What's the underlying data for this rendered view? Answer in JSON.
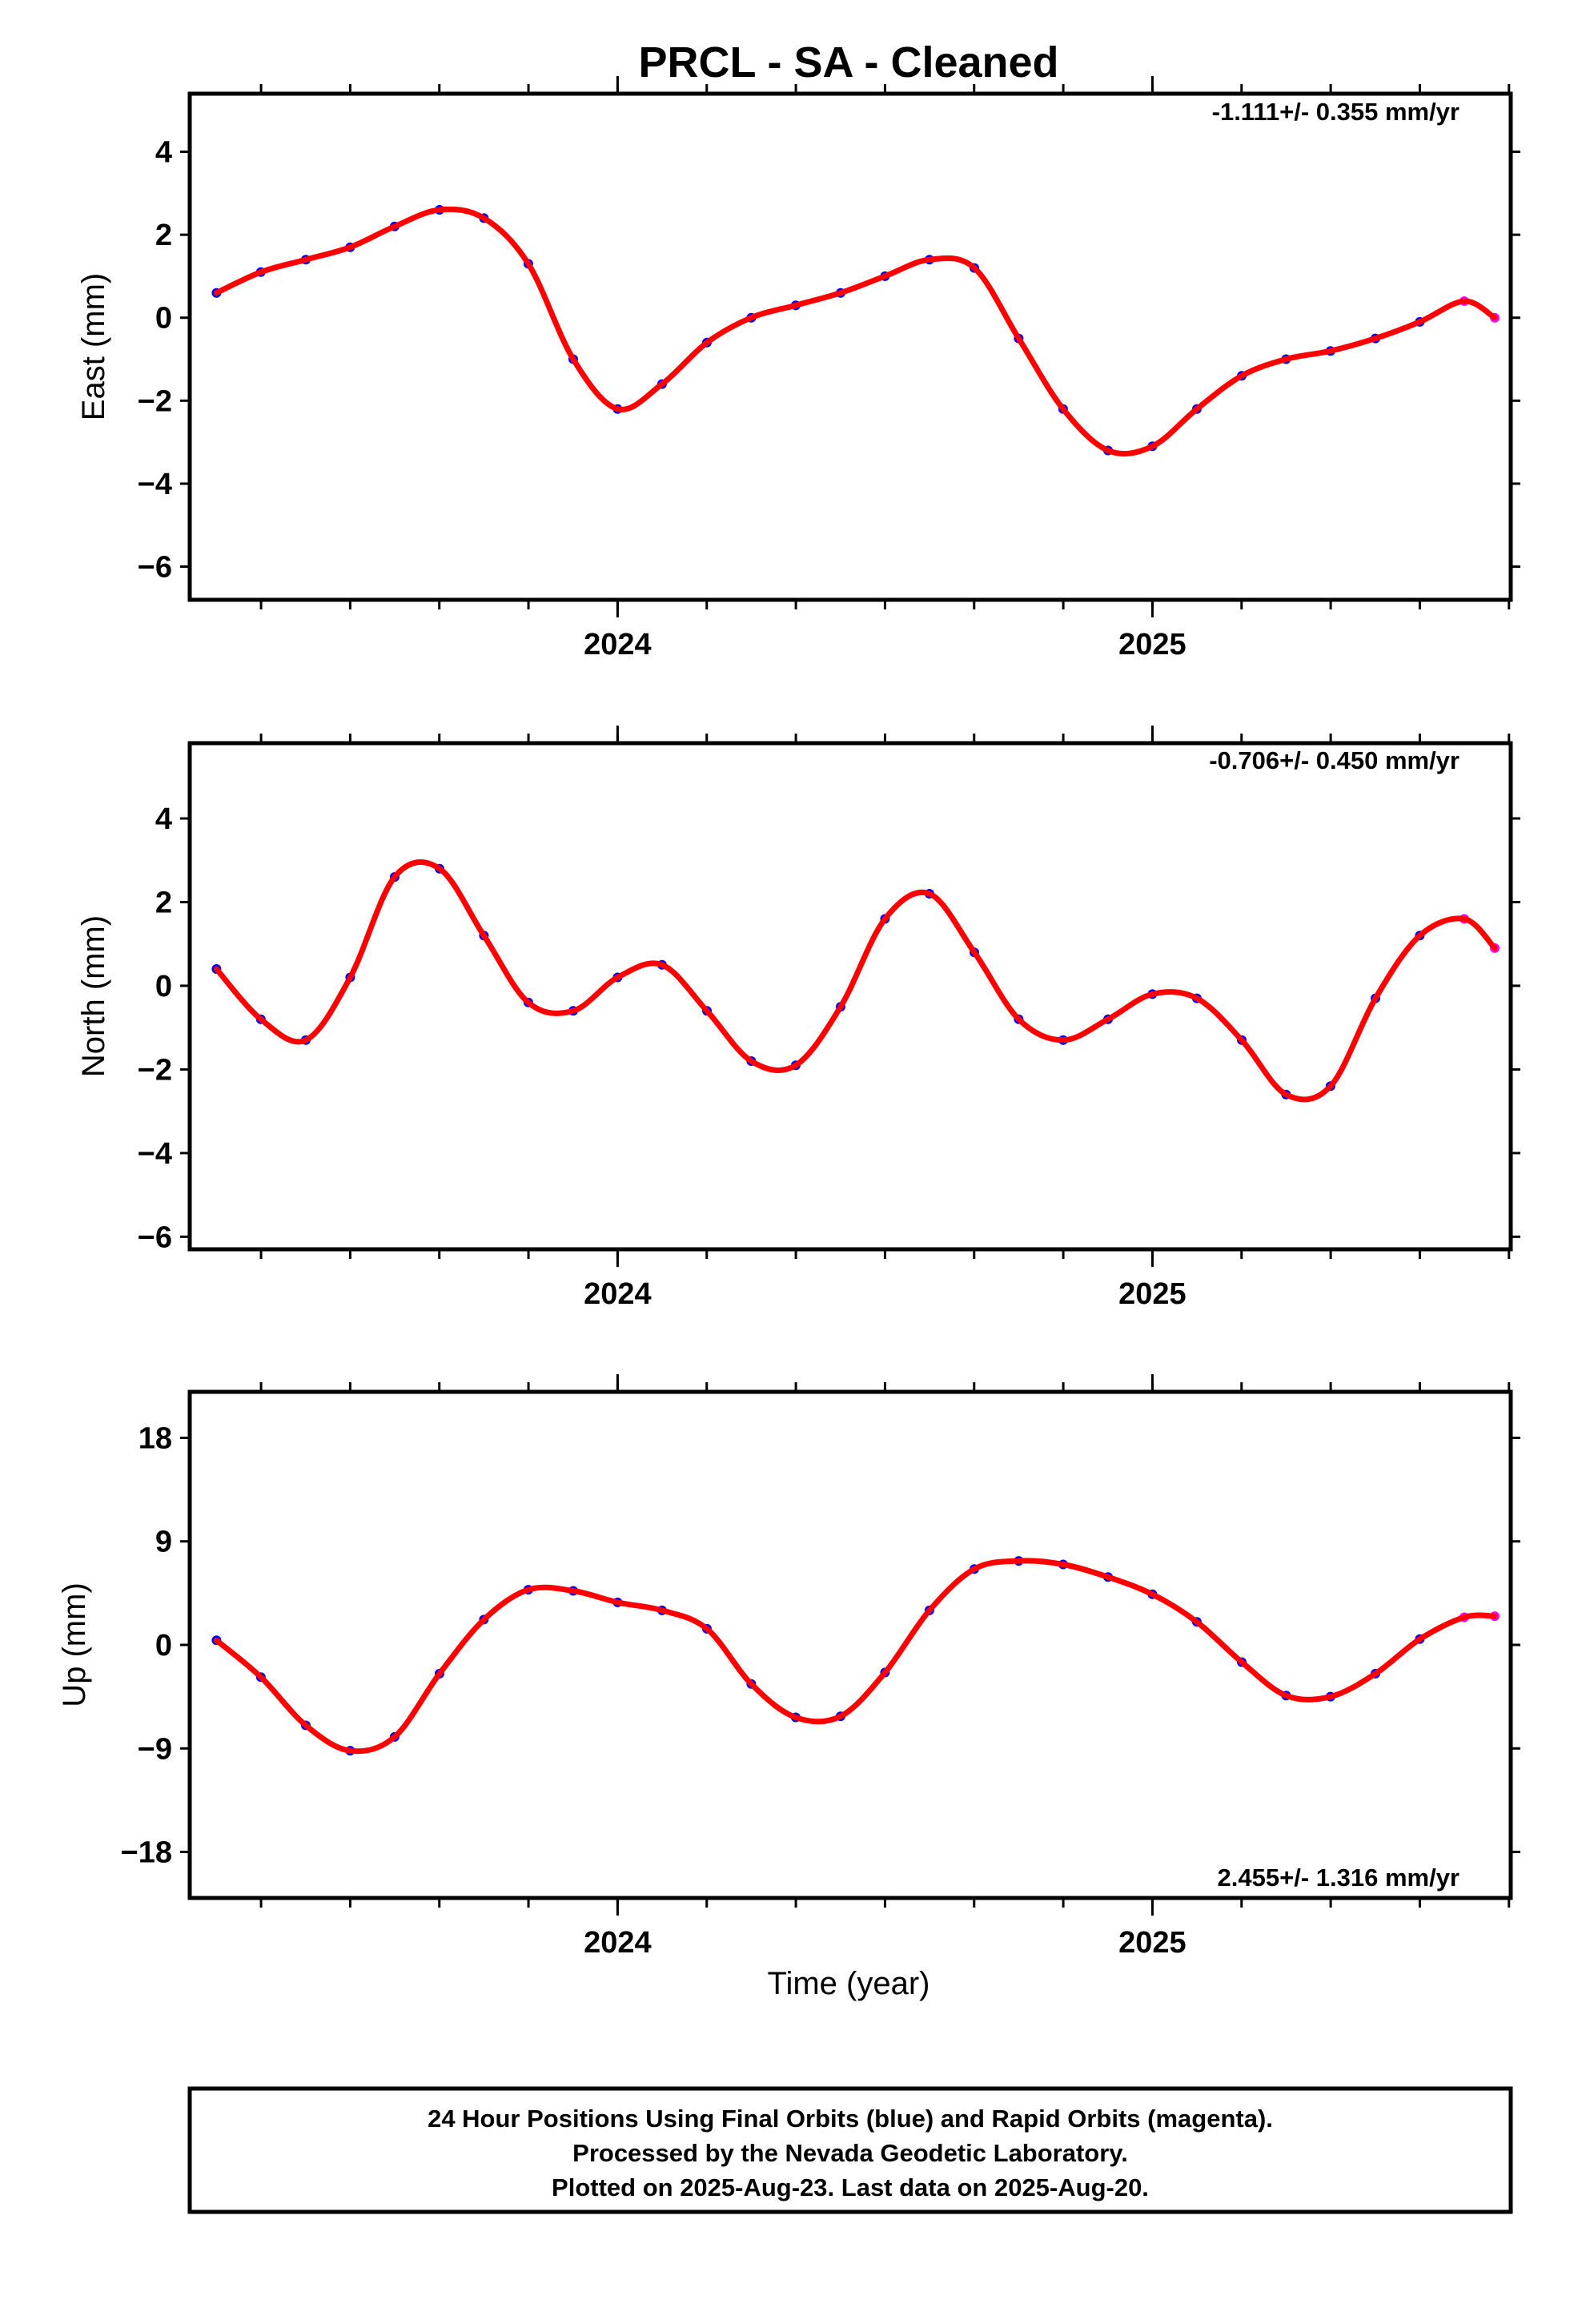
{
  "title": "PRCL  - SA - Cleaned",
  "xlabel": "Time (year)",
  "footer": {
    "line1": "24 Hour Positions Using Final Orbits (blue) and Rapid Orbits (magenta).",
    "line2": "Processed by the Nevada Geodetic Laboratory.",
    "line3": "Plotted on 2025-Aug-23. Last data on 2025-Aug-20."
  },
  "colors": {
    "final": "#0000ff",
    "rapid": "#ff00ff",
    "fit": "#ff0000",
    "frame": "#000000"
  },
  "chart_data": [
    {
      "type": "scatter",
      "ylabel": "East (mm)",
      "rate_label": "-1.111+/- 0.355 mm/yr",
      "xlim": [
        2023.2,
        2025.67
      ],
      "ylim": [
        -6.8,
        5.4
      ],
      "x_ticks": [
        2024,
        2025
      ],
      "y_ticks": [
        -6,
        -4,
        -2,
        0,
        2,
        4
      ],
      "series": [
        {
          "x": [
            2023.25,
            2023.333,
            2023.417,
            2023.5,
            2023.583,
            2023.667,
            2023.75,
            2023.833,
            2023.917,
            2024.0,
            2024.083,
            2024.167,
            2024.25,
            2024.333,
            2024.417,
            2024.5,
            2024.583,
            2024.667,
            2024.75,
            2024.833,
            2024.917,
            2025.0,
            2025.083,
            2025.167,
            2025.25,
            2025.333,
            2025.417,
            2025.5,
            2025.583,
            2025.64
          ],
          "y": [
            0.6,
            1.1,
            1.4,
            1.7,
            2.2,
            2.6,
            2.4,
            1.3,
            -1.0,
            -2.2,
            -1.6,
            -0.6,
            0.0,
            0.3,
            0.6,
            1.0,
            1.4,
            1.2,
            -0.5,
            -2.2,
            -3.2,
            -3.1,
            -2.2,
            -1.4,
            -1.0,
            -0.8,
            -0.5,
            -0.1,
            0.4,
            0.0
          ]
        }
      ]
    },
    {
      "type": "scatter",
      "ylabel": "North (mm)",
      "rate_label": "-0.706+/- 0.450 mm/yr",
      "xlim": [
        2023.2,
        2025.67
      ],
      "ylim": [
        -6.3,
        5.8
      ],
      "x_ticks": [
        2024,
        2025
      ],
      "y_ticks": [
        -6,
        -4,
        -2,
        0,
        2,
        4
      ],
      "series": [
        {
          "x": [
            2023.25,
            2023.333,
            2023.417,
            2023.5,
            2023.583,
            2023.667,
            2023.75,
            2023.833,
            2023.917,
            2024.0,
            2024.083,
            2024.167,
            2024.25,
            2024.333,
            2024.417,
            2024.5,
            2024.583,
            2024.667,
            2024.75,
            2024.833,
            2024.917,
            2025.0,
            2025.083,
            2025.167,
            2025.25,
            2025.333,
            2025.417,
            2025.5,
            2025.583,
            2025.64
          ],
          "y": [
            0.4,
            -0.8,
            -1.3,
            0.2,
            2.6,
            2.8,
            1.2,
            -0.4,
            -0.6,
            0.2,
            0.5,
            -0.6,
            -1.8,
            -1.9,
            -0.5,
            1.6,
            2.2,
            0.8,
            -0.8,
            -1.3,
            -0.8,
            -0.2,
            -0.3,
            -1.3,
            -2.6,
            -2.4,
            -0.3,
            1.2,
            1.6,
            0.9
          ]
        }
      ]
    },
    {
      "type": "scatter",
      "ylabel": "Up (mm)",
      "rate_label": "2.455+/- 1.316 mm/yr",
      "xlim": [
        2023.2,
        2025.67
      ],
      "ylim": [
        -22,
        22
      ],
      "x_ticks": [
        2024,
        2025
      ],
      "y_ticks": [
        -18,
        -9,
        0,
        9,
        18
      ],
      "series": [
        {
          "x": [
            2023.25,
            2023.333,
            2023.417,
            2023.5,
            2023.583,
            2023.667,
            2023.75,
            2023.833,
            2023.917,
            2024.0,
            2024.083,
            2024.167,
            2024.25,
            2024.333,
            2024.417,
            2024.5,
            2024.583,
            2024.667,
            2024.75,
            2024.833,
            2024.917,
            2025.0,
            2025.083,
            2025.167,
            2025.25,
            2025.333,
            2025.417,
            2025.5,
            2025.583,
            2025.64
          ],
          "y": [
            0.4,
            -2.8,
            -7.0,
            -9.2,
            -8.0,
            -2.5,
            2.2,
            4.8,
            4.7,
            3.7,
            3.0,
            1.4,
            -3.4,
            -6.3,
            -6.2,
            -2.4,
            3.0,
            6.6,
            7.3,
            7.0,
            5.9,
            4.4,
            2.0,
            -1.5,
            -4.4,
            -4.5,
            -2.5,
            0.5,
            2.4,
            2.5
          ]
        }
      ]
    }
  ]
}
